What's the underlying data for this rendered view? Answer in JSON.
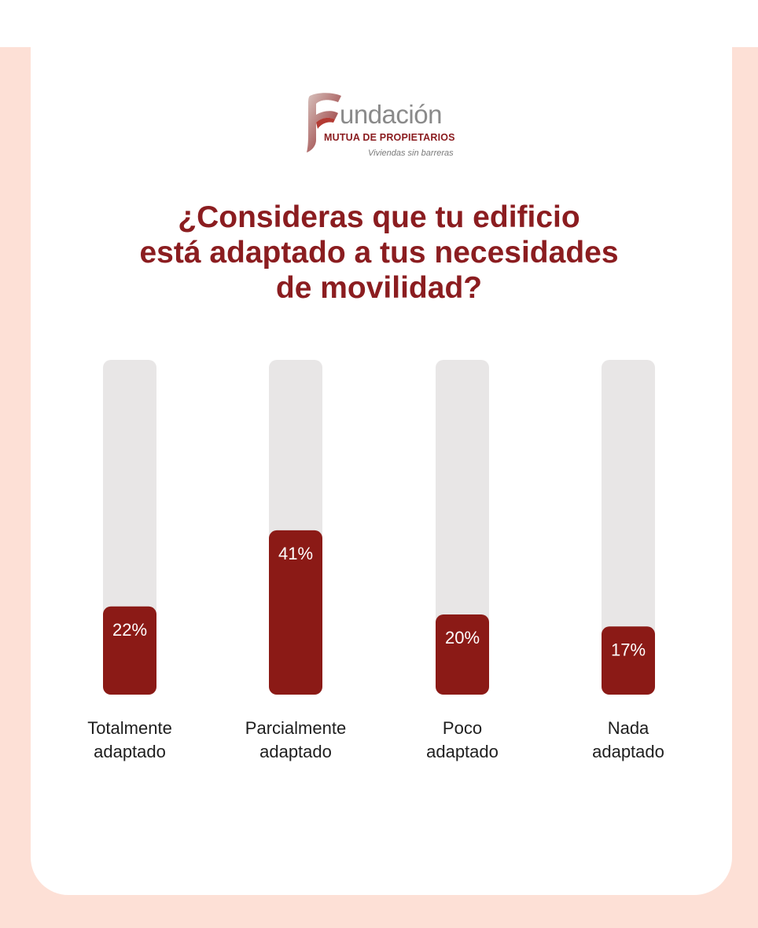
{
  "brand": {
    "name": "undación",
    "subtitle": "MUTUA DE PROPIETARIOS",
    "tagline": "Viviendas sin barreras",
    "colors": {
      "primary": "#8b1d20",
      "bar": "#8b1a16",
      "track": "#e8e6e6",
      "background": "#fde0d6"
    }
  },
  "title_lines": [
    "¿Consideras que tu edificio",
    "está adaptado a tus necesidades",
    "de movilidad?"
  ],
  "chart_data": {
    "type": "bar",
    "title": "¿Consideras que tu edificio está adaptado a tus necesidades de movilidad?",
    "categories": [
      "Totalmente adaptado",
      "Parcialmente adaptado",
      "Poco adaptado",
      "Nada adaptado"
    ],
    "category_lines": [
      [
        "Totalmente",
        "adaptado"
      ],
      [
        "Parcialmente",
        "adaptado"
      ],
      [
        "Poco",
        "adaptado"
      ],
      [
        "Nada",
        "adaptado"
      ]
    ],
    "values": [
      22,
      41,
      20,
      17
    ],
    "value_labels": [
      "22%",
      "41%",
      "20%",
      "17%"
    ],
    "unit": "%",
    "ylim": [
      0,
      100
    ],
    "grid": false,
    "legend": "none"
  }
}
